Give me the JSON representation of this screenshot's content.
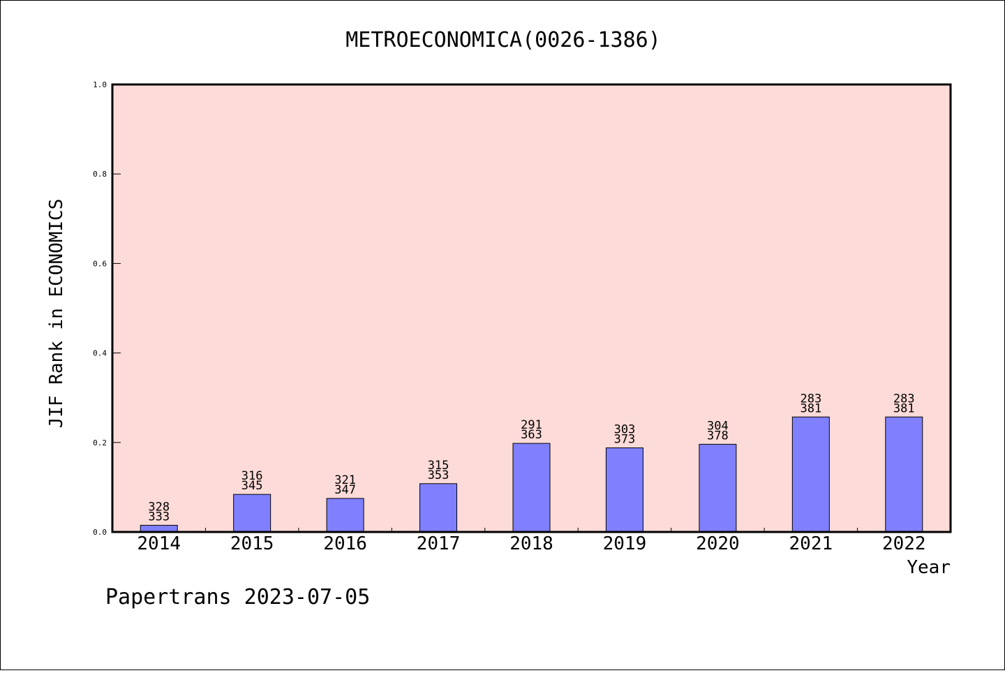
{
  "chart_data": {
    "type": "bar",
    "title": "METROECONOMICA(0026-1386)",
    "xlabel": "Year",
    "ylabel": "JIF Rank in ECONOMICS",
    "footer": "Papertrans 2023-07-05",
    "ylim": [
      0.0,
      1.0
    ],
    "yticks": [
      "0.0",
      "0.2",
      "0.4",
      "0.6",
      "0.8",
      "1.0"
    ],
    "grid": false,
    "colors": {
      "plot_background": "#fddbd8",
      "bar_fill": "#8080ff",
      "bar_stroke": "#000000"
    },
    "categories": [
      "2014",
      "2015",
      "2016",
      "2017",
      "2018",
      "2019",
      "2020",
      "2021",
      "2022"
    ],
    "values": [
      0.015,
      0.084,
      0.075,
      0.108,
      0.198,
      0.188,
      0.196,
      0.257,
      0.257
    ],
    "rank_labels": [
      {
        "rank": "328",
        "total": "333"
      },
      {
        "rank": "316",
        "total": "345"
      },
      {
        "rank": "321",
        "total": "347"
      },
      {
        "rank": "315",
        "total": "353"
      },
      {
        "rank": "291",
        "total": "363"
      },
      {
        "rank": "303",
        "total": "373"
      },
      {
        "rank": "304",
        "total": "378"
      },
      {
        "rank": "283",
        "total": "381"
      },
      {
        "rank": "283",
        "total": "381"
      }
    ]
  }
}
